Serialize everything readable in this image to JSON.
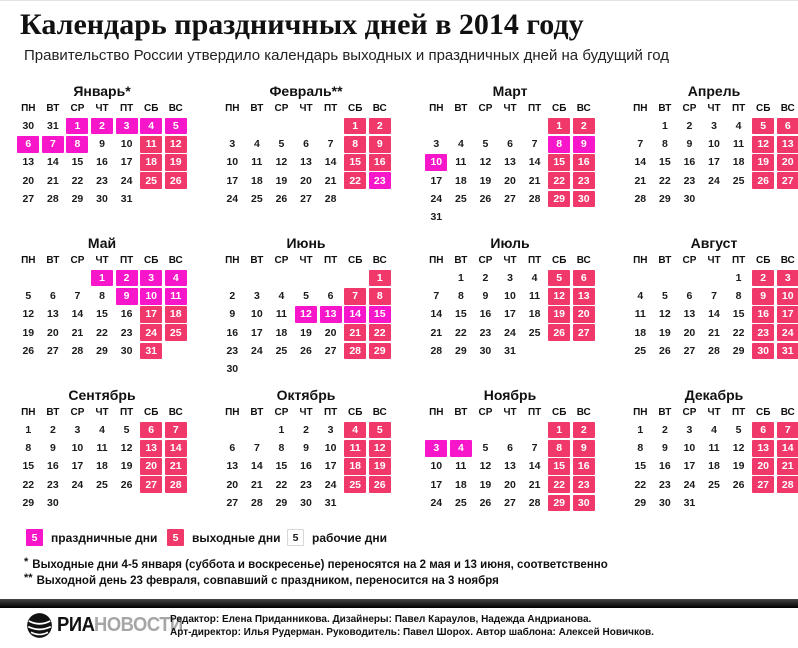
{
  "header": {
    "title": "Календарь праздничных дней в 2014 году",
    "subtitle": "Правительство России утвердило календарь выходных и праздничных дней на будущий год"
  },
  "colors": {
    "holiday": "#f716c9",
    "weekend": "#f0386b",
    "text": "#1b1b1b"
  },
  "weekdays": [
    "ПН",
    "ВТ",
    "СР",
    "ЧТ",
    "ПТ",
    "СБ",
    "ВС"
  ],
  "cell_types": {
    "h": "праздничные дни",
    "w": "выходные дни",
    "n": "рабочие дни"
  },
  "months": [
    {
      "name": "Январь*",
      "weeks": [
        [
          "30n",
          "31n",
          "1h",
          "2h",
          "3h",
          "4h",
          "5h"
        ],
        [
          "6h",
          "7h",
          "8h",
          "9n",
          "10n",
          "11w",
          "12w"
        ],
        [
          "13n",
          "14n",
          "15n",
          "16n",
          "17n",
          "18w",
          "19w"
        ],
        [
          "20n",
          "21n",
          "22n",
          "23n",
          "24n",
          "25w",
          "26w"
        ],
        [
          "27n",
          "28n",
          "29n",
          "30n",
          "31n",
          null,
          null
        ]
      ]
    },
    {
      "name": "Февраль**",
      "weeks": [
        [
          null,
          null,
          null,
          null,
          null,
          "1w",
          "2w"
        ],
        [
          "3n",
          "4n",
          "5n",
          "6n",
          "7n",
          "8w",
          "9w"
        ],
        [
          "10n",
          "11n",
          "12n",
          "13n",
          "14n",
          "15w",
          "16w"
        ],
        [
          "17n",
          "18n",
          "19n",
          "20n",
          "21n",
          "22w",
          "23h"
        ],
        [
          "24n",
          "25n",
          "26n",
          "27n",
          "28n",
          null,
          null
        ]
      ]
    },
    {
      "name": "Март",
      "weeks": [
        [
          null,
          null,
          null,
          null,
          null,
          "1w",
          "2w"
        ],
        [
          "3n",
          "4n",
          "5n",
          "6n",
          "7n",
          "8h",
          "9h"
        ],
        [
          "10h",
          "11n",
          "12n",
          "13n",
          "14n",
          "15w",
          "16w"
        ],
        [
          "17n",
          "18n",
          "19n",
          "20n",
          "21n",
          "22w",
          "23w"
        ],
        [
          "24n",
          "25n",
          "26n",
          "27n",
          "28n",
          "29w",
          "30w"
        ],
        [
          "31n",
          null,
          null,
          null,
          null,
          null,
          null
        ]
      ]
    },
    {
      "name": "Апрель",
      "weeks": [
        [
          null,
          "1n",
          "2n",
          "3n",
          "4n",
          "5w",
          "6w"
        ],
        [
          "7n",
          "8n",
          "9n",
          "10n",
          "11n",
          "12w",
          "13w"
        ],
        [
          "14n",
          "15n",
          "16n",
          "17n",
          "18n",
          "19w",
          "20w"
        ],
        [
          "21n",
          "22n",
          "23n",
          "24n",
          "25n",
          "26w",
          "27w"
        ],
        [
          "28n",
          "29n",
          "30n",
          null,
          null,
          null,
          null
        ]
      ]
    },
    {
      "name": "Май",
      "weeks": [
        [
          null,
          null,
          null,
          "1h",
          "2h",
          "3h",
          "4h"
        ],
        [
          "5n",
          "6n",
          "7n",
          "8n",
          "9h",
          "10h",
          "11h"
        ],
        [
          "12n",
          "13n",
          "14n",
          "15n",
          "16n",
          "17w",
          "18w"
        ],
        [
          "19n",
          "20n",
          "21n",
          "22n",
          "23n",
          "24w",
          "25w"
        ],
        [
          "26n",
          "27n",
          "28n",
          "29n",
          "30n",
          "31w",
          null
        ]
      ]
    },
    {
      "name": "Июнь",
      "weeks": [
        [
          null,
          null,
          null,
          null,
          null,
          null,
          "1w"
        ],
        [
          "2n",
          "3n",
          "4n",
          "5n",
          "6n",
          "7w",
          "8w"
        ],
        [
          "9n",
          "10n",
          "11n",
          "12h",
          "13h",
          "14h",
          "15h"
        ],
        [
          "16n",
          "17n",
          "18n",
          "19n",
          "20n",
          "21w",
          "22w"
        ],
        [
          "23n",
          "24n",
          "25n",
          "26n",
          "27n",
          "28w",
          "29w"
        ],
        [
          "30n",
          null,
          null,
          null,
          null,
          null,
          null
        ]
      ]
    },
    {
      "name": "Июль",
      "weeks": [
        [
          null,
          "1n",
          "2n",
          "3n",
          "4n",
          "5w",
          "6w"
        ],
        [
          "7n",
          "8n",
          "9n",
          "10n",
          "11n",
          "12w",
          "13w"
        ],
        [
          "14n",
          "15n",
          "16n",
          "17n",
          "18n",
          "19w",
          "20w"
        ],
        [
          "21n",
          "22n",
          "23n",
          "24n",
          "25n",
          "26w",
          "27w"
        ],
        [
          "28n",
          "29n",
          "30n",
          "31n",
          null,
          null,
          null
        ]
      ]
    },
    {
      "name": "Август",
      "weeks": [
        [
          null,
          null,
          null,
          null,
          "1n",
          "2w",
          "3w"
        ],
        [
          "4n",
          "5n",
          "6n",
          "7n",
          "8n",
          "9w",
          "10w"
        ],
        [
          "11n",
          "12n",
          "13n",
          "14n",
          "15n",
          "16w",
          "17w"
        ],
        [
          "18n",
          "19n",
          "20n",
          "21n",
          "22n",
          "23w",
          "24w"
        ],
        [
          "25n",
          "26n",
          "27n",
          "28n",
          "29n",
          "30w",
          "31w"
        ]
      ]
    },
    {
      "name": "Сентябрь",
      "weeks": [
        [
          "1n",
          "2n",
          "3n",
          "4n",
          "5n",
          "6w",
          "7w"
        ],
        [
          "8n",
          "9n",
          "10n",
          "11n",
          "12n",
          "13w",
          "14w"
        ],
        [
          "15n",
          "16n",
          "17n",
          "18n",
          "19n",
          "20w",
          "21w"
        ],
        [
          "22n",
          "23n",
          "24n",
          "25n",
          "26n",
          "27w",
          "28w"
        ],
        [
          "29n",
          "30n",
          null,
          null,
          null,
          null,
          null
        ]
      ]
    },
    {
      "name": "Октябрь",
      "weeks": [
        [
          null,
          null,
          "1n",
          "2n",
          "3n",
          "4w",
          "5w"
        ],
        [
          "6n",
          "7n",
          "8n",
          "9n",
          "10n",
          "11w",
          "12w"
        ],
        [
          "13n",
          "14n",
          "15n",
          "16n",
          "17n",
          "18w",
          "19w"
        ],
        [
          "20n",
          "21n",
          "22n",
          "23n",
          "24n",
          "25w",
          "26w"
        ],
        [
          "27n",
          "28n",
          "29n",
          "30n",
          "31n",
          null,
          null
        ]
      ]
    },
    {
      "name": "Ноябрь",
      "weeks": [
        [
          null,
          null,
          null,
          null,
          null,
          "1w",
          "2w"
        ],
        [
          "3h",
          "4h",
          "5n",
          "6n",
          "7n",
          "8w",
          "9w"
        ],
        [
          "10n",
          "11n",
          "12n",
          "13n",
          "14n",
          "15w",
          "16w"
        ],
        [
          "17n",
          "18n",
          "19n",
          "20n",
          "21n",
          "22w",
          "23w"
        ],
        [
          "24n",
          "25n",
          "26n",
          "27n",
          "28n",
          "29w",
          "30w"
        ]
      ]
    },
    {
      "name": "Декабрь",
      "weeks": [
        [
          "1n",
          "2n",
          "3n",
          "4n",
          "5n",
          "6w",
          "7w"
        ],
        [
          "8n",
          "9n",
          "10n",
          "11n",
          "12n",
          "13w",
          "14w"
        ],
        [
          "15n",
          "16n",
          "17n",
          "18n",
          "19n",
          "20w",
          "21w"
        ],
        [
          "22n",
          "23n",
          "24n",
          "25n",
          "26n",
          "27w",
          "28w"
        ],
        [
          "29n",
          "30n",
          "31n",
          null,
          null,
          null,
          null
        ]
      ]
    }
  ],
  "legend": {
    "items": [
      {
        "sample": "5",
        "type": "h",
        "label": "праздничные дни"
      },
      {
        "sample": "5",
        "type": "w",
        "label": "выходные дни"
      },
      {
        "sample": "5",
        "type": "n",
        "label": "рабочие дни"
      }
    ]
  },
  "footnotes": [
    {
      "marker": "*",
      "text": "Выходные дни 4-5 января (суббота и воскресенье) переносятся на 2 мая и 13 июня, соответственно"
    },
    {
      "marker": "**",
      "text": "Выходной день 23 февраля, совпавший с праздником, переносится на 3 ноября"
    }
  ],
  "footer": {
    "brand": {
      "ria": "РИА",
      "novosti": "НОВОСТИ"
    },
    "credits_line1": "Редактор: Елена Приданникова. Дизайнеры: Павел Караулов, Надежда Андрианова.",
    "credits_line2": "Арт-директор: Илья Рудерман. Руководитель: Павел Шорох. Автор шаблона: Алексей Новичков."
  }
}
